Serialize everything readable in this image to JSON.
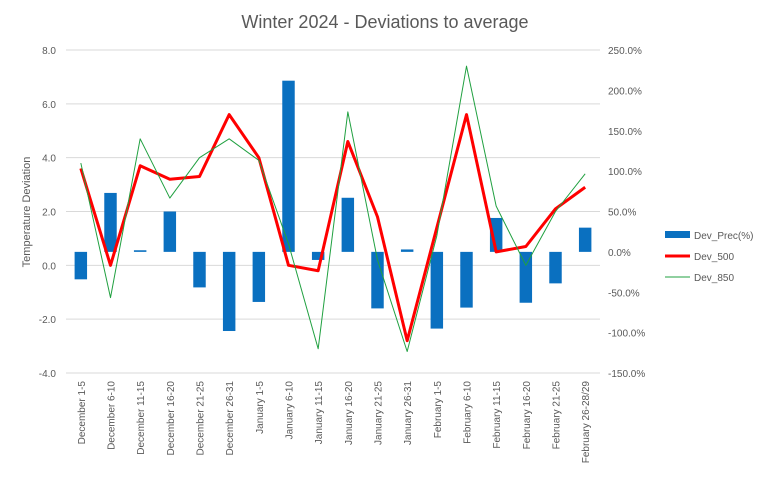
{
  "chart_data": {
    "type": "bar+line",
    "title": "Winter 2024 - Deviations to average",
    "ylabel": "Temperature Deviation",
    "ylabel_right": "",
    "ylim": [
      -4,
      8
    ],
    "ylim_right": [
      -150,
      250
    ],
    "y_ticks": [
      "-4.0",
      "-2.0",
      "0.0",
      "2.0",
      "4.0",
      "6.0",
      "8.0"
    ],
    "y_right_ticks": [
      "-150.0%",
      "-100.0%",
      "-50.0%",
      "0.0%",
      "50.0%",
      "100.0%",
      "150.0%",
      "200.0%",
      "250.0%"
    ],
    "categories": [
      "December 1-5",
      "December 6-10",
      "December 11-15",
      "December 16-20",
      "December 21-25",
      "December 26-31",
      "January 1-5",
      "January 6-10",
      "January 11-15",
      "January 16-20",
      "January 21-25",
      "January 26-31",
      "February 1-5",
      "February 6-10",
      "February 11-15",
      "February 16-20",
      "February 21-25",
      "February 26-28/29"
    ],
    "grid": true,
    "legend_position": "right",
    "series": [
      {
        "name": "Dev_Prec(%)",
        "kind": "bar",
        "axis": "right",
        "color": "#0A70C0",
        "values": [
          -34,
          73,
          2,
          50,
          -44,
          -98,
          -62,
          212,
          -10,
          67,
          -70,
          3,
          -95,
          -69,
          42,
          -63,
          -39,
          30
        ]
      },
      {
        "name": "Dev_500",
        "kind": "line",
        "axis": "left",
        "color": "#FF0000",
        "values": [
          3.6,
          0.0,
          3.7,
          3.2,
          3.3,
          5.6,
          4.0,
          0.0,
          -0.2,
          4.6,
          1.8,
          -2.8,
          1.4,
          5.6,
          0.5,
          0.7,
          2.1,
          2.9
        ]
      },
      {
        "name": "Dev_850",
        "kind": "line",
        "axis": "left",
        "color": "#20A040",
        "values": [
          3.8,
          -1.2,
          4.7,
          2.5,
          4.0,
          4.7,
          3.9,
          0.8,
          -3.1,
          5.7,
          0.2,
          -3.2,
          1.1,
          7.4,
          2.2,
          0.0,
          2.0,
          3.4
        ]
      }
    ]
  }
}
